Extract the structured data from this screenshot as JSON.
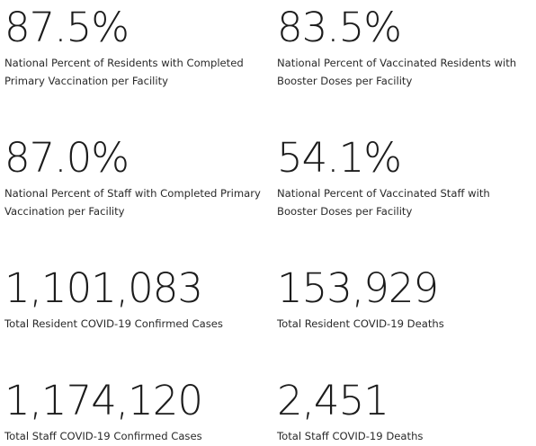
{
  "stats": [
    {
      "value": "87.5%",
      "label": "National Percent of Residents with Completed Primary Vaccination per Facility"
    },
    {
      "value": "83.5%",
      "label": "National Percent of Vaccinated Residents with Booster Doses per Facility"
    },
    {
      "value": "87.0%",
      "label": "National Percent of Staff with Completed Primary Vaccination per Facility"
    },
    {
      "value": "54.1%",
      "label": "National Percent of Vaccinated Staff with Booster Doses per Facility"
    },
    {
      "value": "1,101,083",
      "label": "Total Resident COVID-19 Confirmed Cases"
    },
    {
      "value": "153,929",
      "label": "Total Resident COVID-19 Deaths"
    },
    {
      "value": "1,174,120",
      "label": "Total Staff COVID-19 Confirmed Cases"
    },
    {
      "value": "2,451",
      "label": "Total Staff COVID-19 Deaths"
    }
  ]
}
